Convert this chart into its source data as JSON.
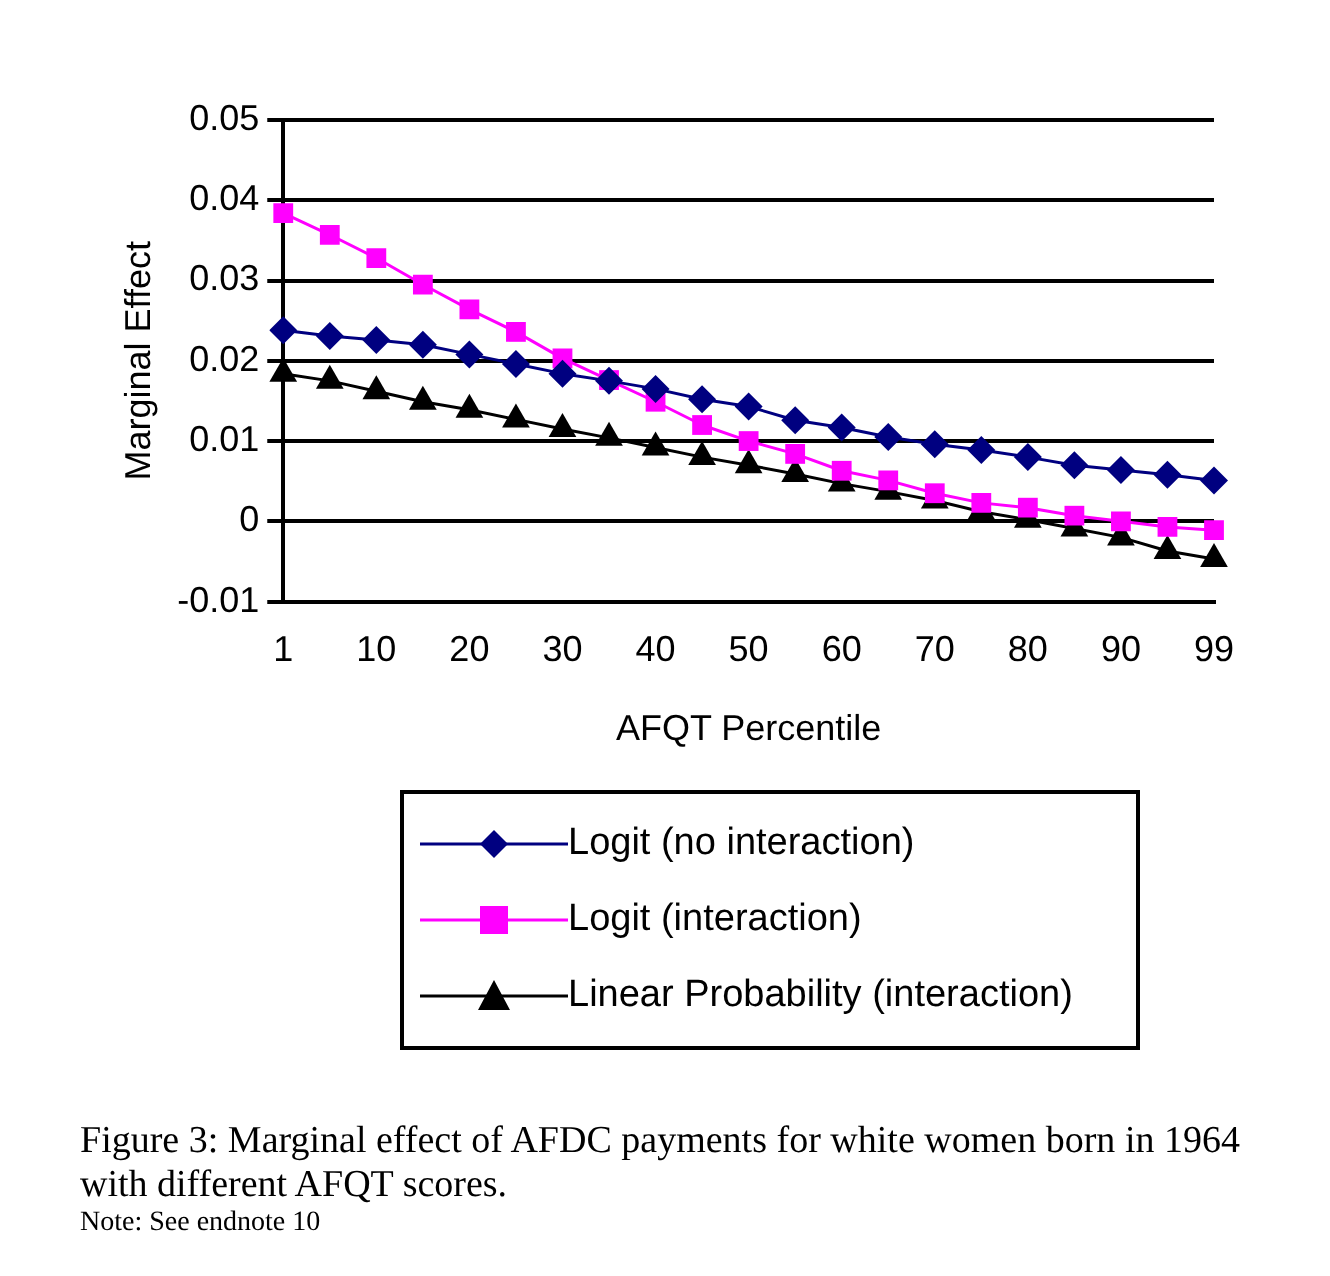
{
  "chart_data": {
    "type": "line",
    "xlabel": "AFQT Percentile",
    "ylabel": "Marginal Effect",
    "categories": [
      "1",
      null,
      "10",
      null,
      "20",
      null,
      "30",
      null,
      "40",
      null,
      "50",
      null,
      "60",
      null,
      "70",
      null,
      "80",
      null,
      "90",
      null,
      "99"
    ],
    "series": [
      {
        "name": "Logit (no interaction)",
        "color": "#000080",
        "marker": "diamond",
        "values": [
          0.0238,
          0.0231,
          0.0226,
          0.022,
          0.0208,
          0.0196,
          0.0184,
          0.0175,
          0.0165,
          0.0152,
          0.0143,
          0.0126,
          0.0117,
          0.0105,
          0.0096,
          0.0089,
          0.008,
          0.007,
          0.0064,
          0.0058,
          0.0051
        ]
      },
      {
        "name": "Logit (interaction)",
        "color": "#ff00ff",
        "marker": "square",
        "values": [
          0.0384,
          0.0357,
          0.0328,
          0.0295,
          0.0264,
          0.0236,
          0.0203,
          0.0176,
          0.0149,
          0.012,
          0.01,
          0.0084,
          0.0063,
          0.0051,
          0.0035,
          0.0023,
          0.0017,
          0.0007,
          0.0,
          -0.0007,
          -0.0011
        ]
      },
      {
        "name": "Linear Probability (interaction)",
        "color": "#000000",
        "marker": "triangle",
        "values": [
          0.0184,
          0.0175,
          0.0162,
          0.0149,
          0.0139,
          0.0127,
          0.0115,
          0.0104,
          0.0092,
          0.008,
          0.007,
          0.0059,
          0.0047,
          0.0037,
          0.0026,
          0.0012,
          0.0002,
          -0.0009,
          -0.002,
          -0.0037,
          -0.0047
        ]
      }
    ],
    "ylim": [
      -0.01,
      0.05
    ],
    "yticks": [
      -0.01,
      0,
      0.01,
      0.02,
      0.03,
      0.04,
      0.05
    ],
    "grid": "y",
    "legend": "bottom",
    "line_style": "solid",
    "annotations": [
      "Figure 3: Marginal effect of AFDC payments for white women born in 1964 with different AFQT scores.",
      "Note: See endnote 10"
    ]
  }
}
